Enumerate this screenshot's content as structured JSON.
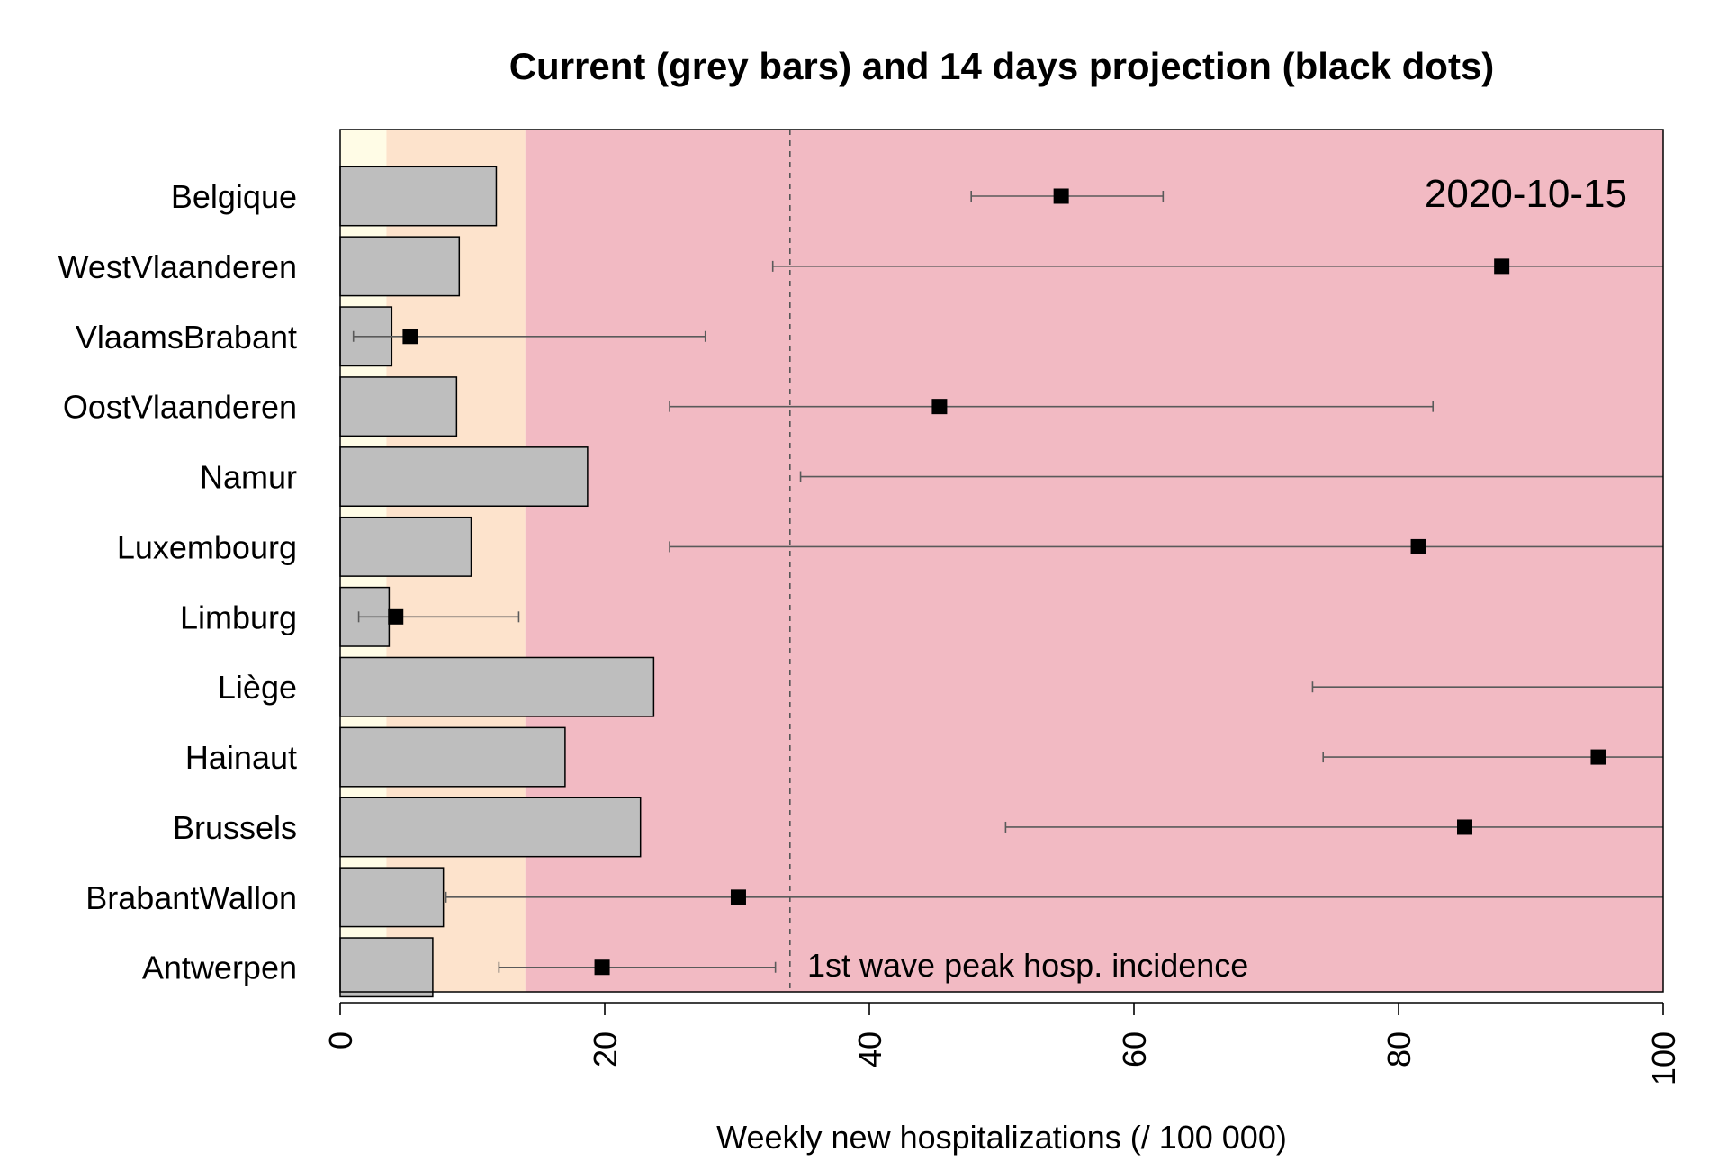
{
  "chart_data": {
    "type": "bar",
    "orientation": "horizontal",
    "title": "Current (grey bars) and 14 days projection (black dots)",
    "xlabel": "Weekly new hospitalizations (/ 100 000)",
    "ylabel": "",
    "xlim": [
      0,
      100
    ],
    "x_ticks": [
      0,
      20,
      40,
      60,
      80,
      100
    ],
    "date_label": "2020-10-15",
    "categories": [
      "Belgique",
      "WestVlaanderen",
      "VlaamsBrabant",
      "OostVlaanderen",
      "Namur",
      "Luxembourg",
      "Limburg",
      "Liège",
      "Hainaut",
      "Brussels",
      "BrabantWallon",
      "Antwerpen"
    ],
    "series": [
      {
        "name": "Current",
        "kind": "bars",
        "color": "#bebebe",
        "values": [
          11.8,
          9.0,
          3.9,
          8.8,
          18.7,
          9.9,
          3.7,
          23.7,
          17.0,
          22.7,
          7.8,
          7.0
        ]
      },
      {
        "name": "14 days projection",
        "kind": "points",
        "color": "#000000",
        "values": [
          54.5,
          87.8,
          5.3,
          45.3,
          null,
          81.5,
          4.2,
          null,
          95.1,
          85.0,
          30.1,
          19.8
        ],
        "lower": [
          47.7,
          32.7,
          1.0,
          24.9,
          34.8,
          24.9,
          1.4,
          73.5,
          74.3,
          50.3,
          8.0,
          12.0
        ],
        "upper": [
          62.2,
          100,
          27.6,
          82.6,
          100,
          100,
          13.5,
          100,
          100,
          100,
          100,
          32.9
        ]
      }
    ],
    "background_bands": [
      {
        "from": 0,
        "to": 3.5,
        "color": "#fffce6"
      },
      {
        "from": 3.5,
        "to": 14,
        "color": "#fde3cc"
      },
      {
        "from": 14,
        "to": 100,
        "color": "#f2bac3"
      }
    ],
    "reference_line": {
      "value": 34,
      "style": "dashed",
      "label": "1st wave peak hosp. incidence"
    },
    "grid": false,
    "legend": "none"
  }
}
